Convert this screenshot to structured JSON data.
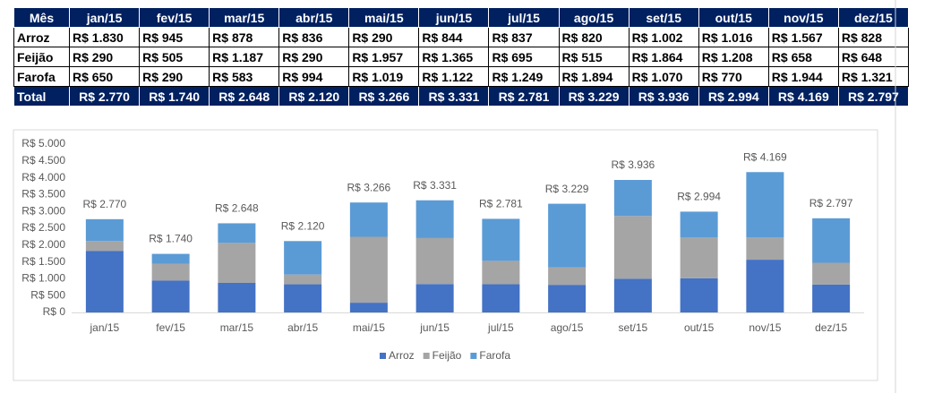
{
  "table": {
    "header": [
      "Mês",
      "jan/15",
      "fev/15",
      "mar/15",
      "abr/15",
      "mai/15",
      "jun/15",
      "jul/15",
      "ago/15",
      "set/15",
      "out/15",
      "nov/15",
      "dez/15"
    ],
    "rows": [
      [
        "Arroz",
        "R$ 1.830",
        "R$ 945",
        "R$ 878",
        "R$ 836",
        "R$ 290",
        "R$ 844",
        "R$ 837",
        "R$ 820",
        "R$ 1.002",
        "R$ 1.016",
        "R$ 1.567",
        "R$ 828"
      ],
      [
        "Feijão",
        "R$ 290",
        "R$ 505",
        "R$ 1.187",
        "R$ 290",
        "R$ 1.957",
        "R$ 1.365",
        "R$ 695",
        "R$ 515",
        "R$ 1.864",
        "R$ 1.208",
        "R$ 658",
        "R$ 648"
      ],
      [
        "Farofa",
        "R$ 650",
        "R$ 290",
        "R$ 583",
        "R$ 994",
        "R$ 1.019",
        "R$ 1.122",
        "R$ 1.249",
        "R$ 1.894",
        "R$ 1.070",
        "R$ 770",
        "R$ 1.944",
        "R$ 1.321"
      ],
      [
        "Total",
        "R$ 2.770",
        "R$ 1.740",
        "R$ 2.648",
        "R$ 2.120",
        "R$ 3.266",
        "R$ 3.331",
        "R$ 2.781",
        "R$ 3.229",
        "R$ 3.936",
        "R$ 2.994",
        "R$ 4.169",
        "R$ 2.797"
      ]
    ]
  },
  "chart_data": {
    "type": "stacked_bar",
    "categories": [
      "jan/15",
      "fev/15",
      "mar/15",
      "abr/15",
      "mai/15",
      "jun/15",
      "jul/15",
      "ago/15",
      "set/15",
      "out/15",
      "nov/15",
      "dez/15"
    ],
    "series": [
      {
        "name": "Arroz",
        "color": "#4472c4",
        "values": [
          1830,
          945,
          878,
          836,
          290,
          844,
          837,
          820,
          1002,
          1016,
          1567,
          828
        ]
      },
      {
        "name": "Feijão",
        "color": "#a5a5a5",
        "values": [
          290,
          505,
          1187,
          290,
          1957,
          1365,
          695,
          515,
          1864,
          1208,
          658,
          648
        ]
      },
      {
        "name": "Farofa",
        "color": "#5b9bd5",
        "values": [
          650,
          290,
          583,
          994,
          1019,
          1122,
          1249,
          1894,
          1070,
          770,
          1944,
          1321
        ]
      }
    ],
    "totals": {
      "values": [
        2770,
        1740,
        2648,
        2120,
        3266,
        3331,
        2781,
        3229,
        3936,
        2994,
        4169,
        2797
      ],
      "value_labels": [
        "R$ 2.770",
        "R$ 1.740",
        "R$ 2.648",
        "R$ 2.120",
        "R$ 3.266",
        "R$ 3.331",
        "R$ 2.781",
        "R$ 3.229",
        "R$ 3.936",
        "R$ 2.994",
        "R$ 4.169",
        "R$ 2.797"
      ]
    },
    "ylim": [
      0,
      5000
    ],
    "yticks": [
      {
        "value": 0,
        "label": "R$ 0"
      },
      {
        "value": 500,
        "label": "R$ 500"
      },
      {
        "value": 1000,
        "label": "R$ 1.000"
      },
      {
        "value": 1500,
        "label": "R$ 1.500"
      },
      {
        "value": 2000,
        "label": "R$ 2.000"
      },
      {
        "value": 2500,
        "label": "R$ 2.500"
      },
      {
        "value": 3000,
        "label": "R$ 3.000"
      },
      {
        "value": 3500,
        "label": "R$ 3.500"
      },
      {
        "value": 4000,
        "label": "R$ 4.000"
      },
      {
        "value": 4500,
        "label": "R$ 4.500"
      },
      {
        "value": 5000,
        "label": "R$ 5.000"
      }
    ],
    "grid": false,
    "legend": "bottom"
  }
}
